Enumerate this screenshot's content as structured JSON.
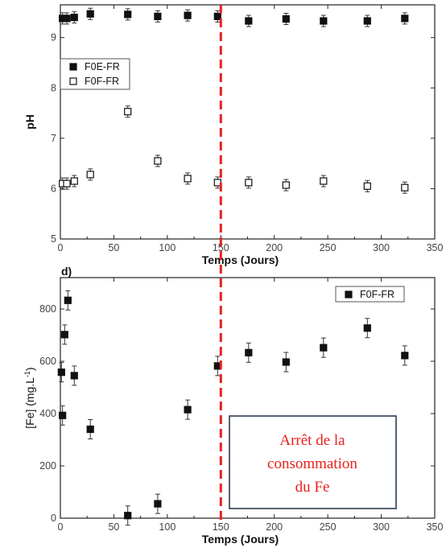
{
  "chart_data": [
    {
      "type": "scatter",
      "panel": "",
      "xlabel": "Temps (Jours)",
      "ylabel": "pH",
      "xlim": [
        0,
        350
      ],
      "ylim": [
        5,
        9.65
      ],
      "xticks": [
        0,
        50,
        100,
        150,
        200,
        250,
        300,
        350
      ],
      "yticks": [
        5,
        6,
        7,
        8,
        9
      ],
      "grid": false,
      "legend_position": "upper-left",
      "series": [
        {
          "name": "F0E-FR",
          "marker": "filled-square",
          "color": "#111111",
          "x": [
            2,
            6,
            13,
            28,
            63,
            91,
            119,
            147,
            176,
            211,
            246,
            287,
            322
          ],
          "y": [
            9.38,
            9.38,
            9.4,
            9.47,
            9.46,
            9.42,
            9.44,
            9.42,
            9.33,
            9.37,
            9.33,
            9.33,
            9.38
          ]
        },
        {
          "name": "F0F-FR",
          "marker": "open-square",
          "color": "#111111",
          "x": [
            2,
            6,
            13,
            28,
            63,
            91,
            119,
            147,
            176,
            211,
            246,
            287,
            322
          ],
          "y": [
            6.1,
            6.1,
            6.15,
            6.28,
            7.53,
            6.55,
            6.2,
            6.12,
            6.12,
            6.07,
            6.15,
            6.05,
            6.02
          ]
        }
      ]
    },
    {
      "type": "scatter",
      "panel": "d)",
      "xlabel": "Temps (Jours)",
      "ylabel": "[Fe] (mg.L",
      "ylabel_sup": "-1",
      "ylabel_end": ")",
      "xlim": [
        0,
        350
      ],
      "ylim": [
        0,
        920
      ],
      "xticks": [
        0,
        50,
        100,
        150,
        200,
        250,
        300,
        350
      ],
      "yticks": [
        0,
        200,
        400,
        600,
        800
      ],
      "grid": false,
      "legend_position": "upper-right",
      "series": [
        {
          "name": "F0F-FR",
          "marker": "filled-square",
          "color": "#111111",
          "x": [
            1,
            2,
            4,
            7,
            13,
            28,
            63,
            91,
            119,
            147,
            176,
            211,
            246,
            287,
            322
          ],
          "y": [
            558,
            393,
            702,
            833,
            545,
            340,
            10,
            55,
            415,
            582,
            633,
            597,
            652,
            727,
            622
          ]
        }
      ]
    }
  ],
  "annotation": {
    "x_day": 150,
    "line_color": "#e8211d",
    "lines": [
      "Arrêt de la",
      "consommation",
      "du Fe"
    ],
    "text_color": "#e8211d",
    "border_color": "#2b3a55"
  }
}
